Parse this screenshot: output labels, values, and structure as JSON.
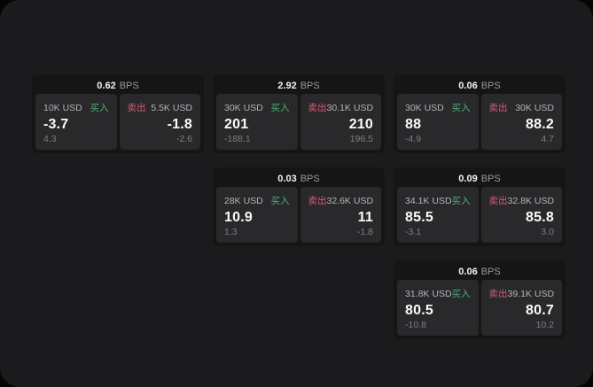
{
  "colors": {
    "buy": "#4caf72",
    "sell": "#d65a73",
    "page_bg": "#1b1b1d",
    "card_bg": "#151516",
    "panel_bg": "#29292b"
  },
  "cards": [
    {
      "bps": "0.62",
      "bps_unit": "BPS",
      "buy": {
        "notional": "10K USD",
        "side_label": "买入",
        "price": "-3.7",
        "delta": "4.3"
      },
      "sell": {
        "notional": "5.5K USD",
        "side_label": "卖出",
        "price": "-1.8",
        "delta": "-2.6"
      }
    },
    {
      "bps": "2.92",
      "bps_unit": "BPS",
      "buy": {
        "notional": "30K USD",
        "side_label": "买入",
        "price": "201",
        "delta": "-188.1"
      },
      "sell": {
        "notional": "30.1K USD",
        "side_label": "卖出",
        "price": "210",
        "delta": "196.5"
      }
    },
    {
      "bps": "0.06",
      "bps_unit": "BPS",
      "buy": {
        "notional": "30K USD",
        "side_label": "买入",
        "price": "88",
        "delta": "-4.9"
      },
      "sell": {
        "notional": "30K USD",
        "side_label": "卖出",
        "price": "88.2",
        "delta": "4.7"
      }
    },
    {
      "bps": "0.03",
      "bps_unit": "BPS",
      "buy": {
        "notional": "28K USD",
        "side_label": "买入",
        "price": "10.9",
        "delta": "1.3"
      },
      "sell": {
        "notional": "32.6K USD",
        "side_label": "卖出",
        "price": "11",
        "delta": "-1.8"
      }
    },
    {
      "bps": "0.09",
      "bps_unit": "BPS",
      "buy": {
        "notional": "34.1K USD",
        "side_label": "买入",
        "price": "85.5",
        "delta": "-3.1"
      },
      "sell": {
        "notional": "32.8K USD",
        "side_label": "卖出",
        "price": "85.8",
        "delta": "3.0"
      }
    },
    {
      "bps": "0.06",
      "bps_unit": "BPS",
      "buy": {
        "notional": "31.8K USD",
        "side_label": "买入",
        "price": "80.5",
        "delta": "-10.8"
      },
      "sell": {
        "notional": "39.1K USD",
        "side_label": "卖出",
        "price": "80.7",
        "delta": "10.2"
      }
    }
  ]
}
